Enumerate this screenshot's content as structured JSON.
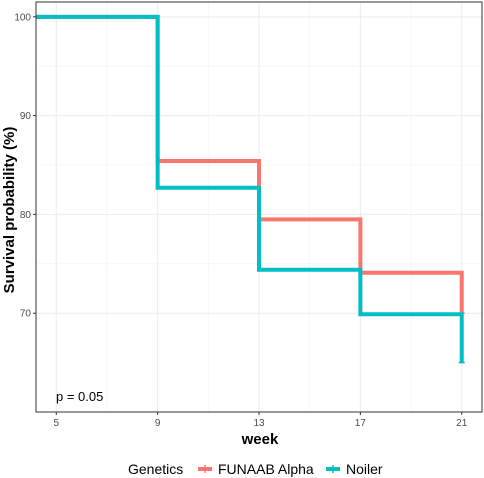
{
  "chart_data": {
    "type": "line",
    "step": true,
    "title": "",
    "xlabel": "week",
    "ylabel": "Survival probability (%)",
    "xlim": [
      4.2,
      21.8
    ],
    "ylim": [
      60,
      101.5
    ],
    "x_ticks": [
      5,
      9,
      13,
      17,
      21
    ],
    "y_ticks": [
      70,
      80,
      90,
      100
    ],
    "grid": true,
    "legend": {
      "title": "Genetics",
      "placement": "bottom",
      "entries": [
        "FUNAAB Alpha",
        "Noiler"
      ]
    },
    "annotation": "p = 0.05",
    "series": [
      {
        "name": "FUNAAB Alpha",
        "color": "#F8766D",
        "x": [
          4.2,
          9,
          13,
          17,
          21
        ],
        "y": [
          100,
          85.4,
          79.5,
          74.1,
          70.0
        ]
      },
      {
        "name": "Noiler",
        "color": "#00BFC4",
        "x": [
          4.2,
          9,
          13,
          17,
          21
        ],
        "y": [
          100,
          82.7,
          74.4,
          69.9,
          65.0
        ]
      }
    ]
  }
}
